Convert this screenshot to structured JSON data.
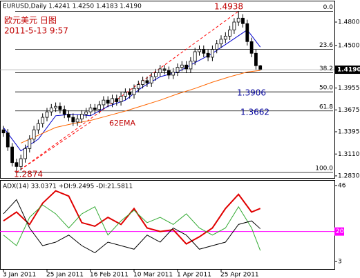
{
  "chart_data": {
    "type": "candlestick",
    "header": "EURUSD,Daily  1.4241 1.4250 1.4183 1.4190",
    "subtitle": "欧元美元 日图",
    "timestamp": "2011-5-13 9:57",
    "ylim": [
      1.2803,
      1.5065
    ],
    "yticks": [
      {
        "value": 1.48,
        "label": "1.4800"
      },
      {
        "value": 1.45,
        "label": "1.4500"
      },
      {
        "value": 1.3955,
        "label": "1.3955"
      },
      {
        "value": 1.3675,
        "label": "1.3675"
      },
      {
        "value": 1.3395,
        "label": "1.3395"
      },
      {
        "value": 1.311,
        "label": "1.3110"
      },
      {
        "value": 1.283,
        "label": "1.2830"
      }
    ],
    "xticks": [
      {
        "value": 0,
        "label": "3 Jan 2011"
      },
      {
        "value": 10,
        "label": "25 Jan 2011"
      },
      {
        "value": 20,
        "label": "16 Feb 2011"
      },
      {
        "value": 30,
        "label": "10 Mar 2011"
      },
      {
        "value": 40,
        "label": "1 Apr 2011"
      },
      {
        "value": 50,
        "label": "25 Apr 2011"
      }
    ],
    "current_price": {
      "value": 1.419,
      "label": "1.4190"
    },
    "ohlc": {
      "open": [
        1.342,
        1.338,
        1.32,
        1.3,
        1.295,
        1.305,
        1.318,
        1.33,
        1.342,
        1.35,
        1.358,
        1.365,
        1.37,
        1.372,
        1.368,
        1.362,
        1.358,
        1.352,
        1.356,
        1.362,
        1.365,
        1.37,
        1.368,
        1.374,
        1.38,
        1.376,
        1.382,
        1.378,
        1.385,
        1.39,
        1.387,
        1.395,
        1.4,
        1.405,
        1.402,
        1.41,
        1.415,
        1.42,
        1.418,
        1.412,
        1.416,
        1.422,
        1.425,
        1.42,
        1.43,
        1.442,
        1.445,
        1.44,
        1.435,
        1.445,
        1.452,
        1.458,
        1.462,
        1.47,
        1.48,
        1.485,
        1.478,
        1.455,
        1.44,
        1.4241
      ],
      "high": [
        1.347,
        1.343,
        1.325,
        1.305,
        1.31,
        1.323,
        1.335,
        1.347,
        1.355,
        1.363,
        1.37,
        1.375,
        1.377,
        1.377,
        1.373,
        1.367,
        1.363,
        1.361,
        1.367,
        1.37,
        1.375,
        1.375,
        1.379,
        1.385,
        1.385,
        1.387,
        1.387,
        1.39,
        1.395,
        1.395,
        1.4,
        1.405,
        1.41,
        1.41,
        1.415,
        1.42,
        1.425,
        1.425,
        1.423,
        1.421,
        1.427,
        1.43,
        1.43,
        1.435,
        1.447,
        1.45,
        1.45,
        1.445,
        1.45,
        1.457,
        1.463,
        1.467,
        1.475,
        1.485,
        1.4938,
        1.49,
        1.483,
        1.46,
        1.445,
        1.425
      ],
      "low": [
        1.333,
        1.315,
        1.295,
        1.2874,
        1.29,
        1.3,
        1.313,
        1.325,
        1.337,
        1.345,
        1.353,
        1.36,
        1.365,
        1.363,
        1.357,
        1.353,
        1.347,
        1.347,
        1.351,
        1.357,
        1.36,
        1.363,
        1.363,
        1.369,
        1.371,
        1.371,
        1.373,
        1.373,
        1.38,
        1.382,
        1.382,
        1.39,
        1.395,
        1.397,
        1.397,
        1.405,
        1.41,
        1.413,
        1.407,
        1.407,
        1.411,
        1.417,
        1.415,
        1.415,
        1.425,
        1.437,
        1.435,
        1.43,
        1.43,
        1.44,
        1.447,
        1.453,
        1.457,
        1.465,
        1.475,
        1.473,
        1.45,
        1.435,
        1.419,
        1.4183
      ],
      "close": [
        1.338,
        1.32,
        1.3,
        1.295,
        1.305,
        1.318,
        1.33,
        1.342,
        1.35,
        1.358,
        1.365,
        1.37,
        1.372,
        1.368,
        1.362,
        1.358,
        1.352,
        1.356,
        1.362,
        1.365,
        1.37,
        1.368,
        1.374,
        1.38,
        1.376,
        1.382,
        1.378,
        1.385,
        1.39,
        1.387,
        1.395,
        1.4,
        1.405,
        1.402,
        1.41,
        1.415,
        1.42,
        1.418,
        1.412,
        1.416,
        1.422,
        1.425,
        1.42,
        1.43,
        1.442,
        1.445,
        1.44,
        1.435,
        1.445,
        1.452,
        1.458,
        1.462,
        1.47,
        1.48,
        1.485,
        1.478,
        1.455,
        1.44,
        1.4241,
        1.419
      ],
      "up_color": "#ffffff",
      "down_color": "#000000"
    },
    "series": [
      {
        "color": "#0000cc",
        "x": [
          0,
          4,
          8,
          12,
          16,
          20,
          24,
          28,
          32,
          36,
          40,
          44,
          48,
          52,
          56,
          59
        ],
        "values": [
          1.345,
          1.315,
          1.33,
          1.36,
          1.362,
          1.36,
          1.372,
          1.38,
          1.397,
          1.41,
          1.416,
          1.428,
          1.44,
          1.455,
          1.47,
          1.448
        ]
      },
      {
        "color": "#ff6600",
        "x": [
          4,
          8,
          12,
          16,
          20,
          24,
          28,
          32,
          36,
          40,
          44,
          48,
          52,
          56,
          59
        ],
        "values": [
          1.325,
          1.335,
          1.345,
          1.35,
          1.354,
          1.36,
          1.366,
          1.373,
          1.38,
          1.388,
          1.395,
          1.403,
          1.41,
          1.416,
          1.418
        ]
      }
    ],
    "fibonacci": {
      "levels": [
        "0.0",
        "23.6",
        "38.2",
        "50.0",
        "61.8",
        "100.0"
      ],
      "prices": [
        1.4938,
        1.4451,
        1.415,
        1.3906,
        1.3662,
        1.2874
      ]
    },
    "annotation": "62EMA",
    "indicator": {
      "title": "ADX(14) 33.0371 +DI:9.2495 -DI:21.5811",
      "ylim": [
        -1.2,
        48.7
      ],
      "yticks": [
        46,
        3
      ],
      "level": 20,
      "level_color": "#ff00ff",
      "series": [
        {
          "color": "#e00000",
          "x": [
            0,
            3,
            6,
            9,
            12,
            15,
            18,
            21,
            24,
            27,
            30,
            33,
            36,
            39,
            42,
            45,
            48,
            51,
            54,
            57,
            59
          ],
          "values": [
            26,
            31,
            24,
            36,
            43,
            40,
            25,
            23,
            28,
            24,
            33,
            22,
            20,
            21,
            13,
            17,
            22,
            33,
            41,
            31,
            33.0371
          ]
        },
        {
          "color": "#33aa33",
          "x": [
            0,
            3,
            6,
            9,
            12,
            15,
            18,
            21,
            24,
            27,
            30,
            33,
            36,
            39,
            42,
            45,
            48,
            51,
            54,
            57,
            59
          ],
          "values": [
            18,
            12,
            28,
            35,
            30,
            22,
            30,
            34,
            18,
            26,
            32,
            25,
            28,
            24,
            30,
            22,
            18,
            22,
            34,
            22,
            9.2495
          ]
        },
        {
          "color": "#000000",
          "x": [
            0,
            3,
            6,
            9,
            12,
            15,
            18,
            21,
            24,
            27,
            30,
            33,
            36,
            39,
            42,
            45,
            48,
            51,
            54,
            57,
            59
          ],
          "values": [
            30,
            38,
            22,
            12,
            14,
            18,
            12,
            8,
            14,
            12,
            10,
            18,
            14,
            22,
            18,
            10,
            12,
            14,
            24,
            26,
            21.5811
          ]
        }
      ]
    }
  }
}
